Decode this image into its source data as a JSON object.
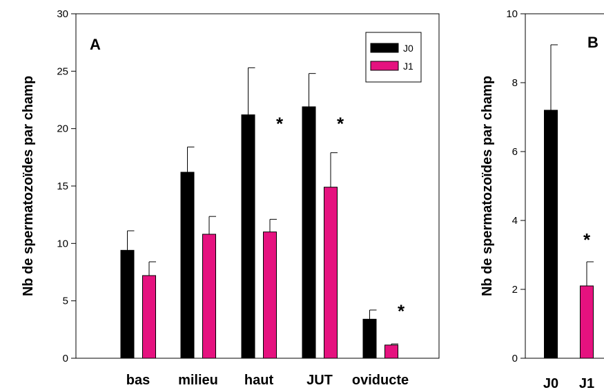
{
  "chart_data": [
    {
      "type": "bar",
      "panel_label": "A",
      "ylabel": "Nb de spermatozoïdes par champ",
      "xlabel": "",
      "ylim": [
        0,
        30
      ],
      "yticks": [
        0,
        5,
        10,
        15,
        20,
        25,
        30
      ],
      "categories": [
        "bas",
        "milieu",
        "haut",
        "JUT",
        "oviducte"
      ],
      "series": [
        {
          "name": "J0",
          "color": "#000000",
          "values": [
            9.4,
            16.2,
            21.2,
            21.9,
            3.4
          ],
          "errors": [
            1.7,
            2.2,
            4.1,
            2.9,
            0.8
          ]
        },
        {
          "name": "J1",
          "color": "#e5127f",
          "values": [
            7.2,
            10.8,
            11.0,
            14.9,
            1.15
          ],
          "errors": [
            1.2,
            1.55,
            1.1,
            3.0,
            0.1
          ]
        }
      ],
      "annotations": [
        {
          "text": "*",
          "category": "haut",
          "y": 20.6
        },
        {
          "text": "*",
          "category": "JUT",
          "y": 20.6
        },
        {
          "text": "*",
          "category": "oviducte",
          "y": 4.3
        }
      ],
      "legend": {
        "position": "top-right",
        "entries": [
          "J0",
          "J1"
        ]
      }
    },
    {
      "type": "bar",
      "panel_label": "B",
      "ylabel": "Nb de spermatozoïdes par champ",
      "xlabel": "",
      "ylim": [
        0,
        10
      ],
      "yticks": [
        0,
        2,
        4,
        6,
        8,
        10
      ],
      "categories": [
        "J0",
        "J1"
      ],
      "values": [
        7.2,
        2.1
      ],
      "errors": [
        1.9,
        0.7
      ],
      "colors": [
        "#000000",
        "#e5127f"
      ],
      "annotations": [
        {
          "text": "*",
          "category": "J1",
          "y": 3.5
        }
      ]
    }
  ]
}
